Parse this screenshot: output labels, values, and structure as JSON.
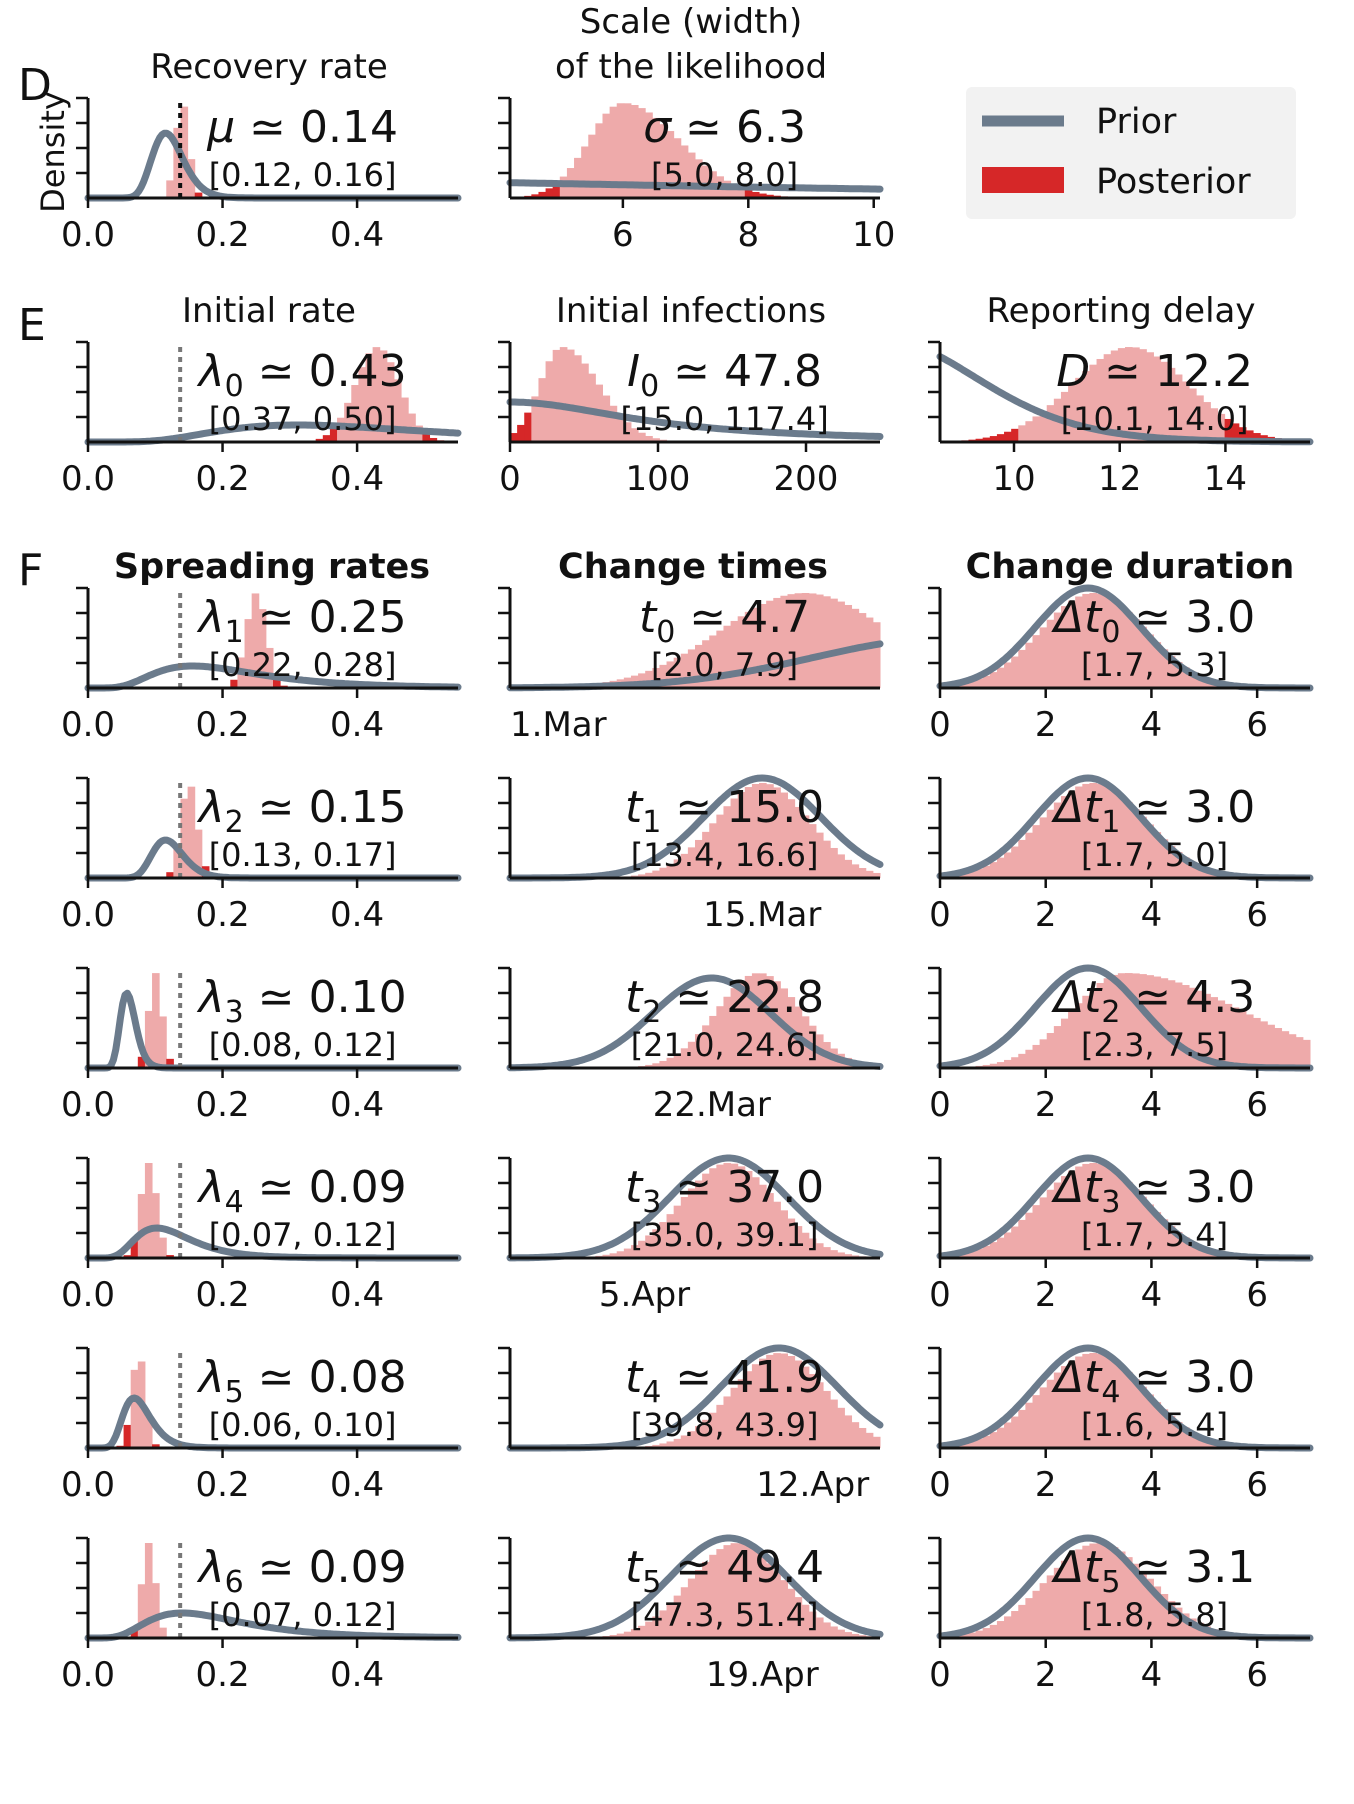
{
  "colors": {
    "prior": "#6b7b8c",
    "prior_light": "#b8c2cc",
    "posterior": "#d62728",
    "posterior_light": "#eeaaaa",
    "legend_bg": "#f2f2f2"
  },
  "legend": {
    "prior": "Prior",
    "posterior": "Posterior"
  },
  "row_labels": [
    "D",
    "E",
    "F"
  ],
  "ylabel": "Density",
  "section_titles": {
    "spreading": "Spreading rates",
    "change_times": "Change times",
    "change_duration": "Change duration"
  },
  "chart_data": [
    {
      "type": "histogram",
      "title_lines": [
        "Recovery rate"
      ],
      "symbol": "μ",
      "sub": "",
      "value": "0.14",
      "interval": "[0.12, 0.16]",
      "xlim": [
        0.0,
        0.55
      ],
      "ticks": [
        {
          "v": 0.0,
          "l": "0.0"
        },
        {
          "v": 0.2,
          "l": "0.2"
        },
        {
          "v": 0.4,
          "l": "0.4"
        }
      ],
      "ref_line": 0.137,
      "prior": {
        "kind": "lognormal",
        "median": 0.12,
        "sigma": 0.2,
        "peak": 0.65
      },
      "posterior": {
        "kind": "normal",
        "mean": 0.14,
        "sd": 0.01
      }
    },
    {
      "type": "histogram",
      "title_lines": [
        "Scale (width)",
        "of the likelihood"
      ],
      "symbol": "σ",
      "sub": "",
      "value": "6.3",
      "interval": "[5.0, 8.0]",
      "xlim": [
        4.2,
        10.1
      ],
      "ticks": [
        {
          "v": 6,
          "l": "6"
        },
        {
          "v": 8,
          "l": "8"
        },
        {
          "v": 10,
          "l": "10"
        }
      ],
      "ref_line": null,
      "prior": {
        "kind": "halfcauchy",
        "scale": 10,
        "peak": 0.18
      },
      "posterior": {
        "kind": "skew",
        "mode": 6.0,
        "sdl": 0.55,
        "sdr": 0.9
      }
    },
    {
      "type": "histogram",
      "title_lines": [
        "Initial rate"
      ],
      "symbol": "λ",
      "sub": "0",
      "value": "0.43",
      "interval": "[0.37, 0.50]",
      "xlim": [
        0.0,
        0.55
      ],
      "ticks": [
        {
          "v": 0.0,
          "l": "0.0"
        },
        {
          "v": 0.2,
          "l": "0.2"
        },
        {
          "v": 0.4,
          "l": "0.4"
        }
      ],
      "ref_line": 0.137,
      "prior": {
        "kind": "lognormal",
        "median": 0.4,
        "sigma": 0.5,
        "peak": 0.17
      },
      "posterior": {
        "kind": "normal",
        "mean": 0.43,
        "sd": 0.033
      }
    },
    {
      "type": "histogram",
      "title_lines": [
        "Initial infections"
      ],
      "symbol": "I",
      "sub": "0",
      "value": "47.8",
      "interval": "[15.0, 117.4]",
      "xlim": [
        0,
        250
      ],
      "ticks": [
        {
          "v": 0,
          "l": "0"
        },
        {
          "v": 100,
          "l": "100"
        },
        {
          "v": 200,
          "l": "200"
        }
      ],
      "ref_line": null,
      "prior": {
        "kind": "halfcauchy",
        "scale": 100,
        "peak": 0.4
      },
      "posterior": {
        "kind": "skew",
        "mode": 35,
        "sdl": 15,
        "sdr": 25
      }
    },
    {
      "type": "histogram",
      "title_lines": [
        "Reporting delay"
      ],
      "symbol": "D",
      "sub": "",
      "value": "12.2",
      "interval": "[10.1, 14.0]",
      "xlim": [
        8.6,
        15.6
      ],
      "ticks": [
        {
          "v": 10,
          "l": "10"
        },
        {
          "v": 12,
          "l": "12"
        },
        {
          "v": 14,
          "l": "14"
        }
      ],
      "ref_line": null,
      "prior": {
        "kind": "lognormal",
        "median": 8,
        "sigma": 0.2,
        "peak": 1.0
      },
      "posterior": {
        "kind": "normal",
        "mean": 12.2,
        "sd": 1.1
      }
    },
    {
      "type": "histogram",
      "symbol": "λ",
      "sub": "1",
      "value": "0.25",
      "interval": "[0.22, 0.28]",
      "xlim": [
        0.0,
        0.55
      ],
      "ticks": [
        {
          "v": 0.0,
          "l": "0.0"
        },
        {
          "v": 0.2,
          "l": "0.2"
        },
        {
          "v": 0.4,
          "l": "0.4"
        }
      ],
      "ref_line": 0.137,
      "prior": {
        "kind": "lognormal",
        "median": 0.2,
        "sigma": 0.5,
        "peak": 0.22
      },
      "posterior": {
        "kind": "normal",
        "mean": 0.25,
        "sd": 0.015
      }
    },
    {
      "type": "histogram",
      "symbol": "t",
      "sub": "0",
      "value": "4.7",
      "interval": "[2.0, 7.9]",
      "xlim": [
        -14,
        8
      ],
      "ticks": [
        {
          "v": -14,
          "l": "1.Mar"
        }
      ],
      "ref_line": null,
      "prior": {
        "kind": "normal",
        "mean": 12,
        "sd": 8,
        "peak": 0.5
      },
      "posterior": {
        "kind": "normal",
        "mean": 3.5,
        "sd": 5
      }
    },
    {
      "type": "histogram",
      "symbol": "Δt",
      "sub": "0",
      "value": "3.0",
      "interval": "[1.7, 5.3]",
      "xlim": [
        0,
        7
      ],
      "ticks": [
        {
          "v": 0,
          "l": "0"
        },
        {
          "v": 2,
          "l": "2"
        },
        {
          "v": 4,
          "l": "4"
        },
        {
          "v": 6,
          "l": "6"
        }
      ],
      "ref_line": null,
      "prior": {
        "kind": "normal",
        "mean": 2.8,
        "sd": 1.0,
        "peak": 1.0
      },
      "posterior": {
        "kind": "normal",
        "mean": 2.9,
        "sd": 1.0
      }
    },
    {
      "type": "histogram",
      "symbol": "λ",
      "sub": "2",
      "value": "0.15",
      "interval": "[0.13, 0.17]",
      "xlim": [
        0.0,
        0.55
      ],
      "ticks": [
        {
          "v": 0.0,
          "l": "0.0"
        },
        {
          "v": 0.2,
          "l": "0.2"
        },
        {
          "v": 0.4,
          "l": "0.4"
        }
      ],
      "ref_line": 0.137,
      "prior": {
        "kind": "lognormal",
        "median": 0.12,
        "sigma": 0.2,
        "peak": 0.38
      },
      "posterior": {
        "kind": "normal",
        "mean": 0.15,
        "sd": 0.012
      }
    },
    {
      "type": "histogram",
      "symbol": "t",
      "sub": "1",
      "value": "15.0",
      "interval": "[13.4, 16.6]",
      "xlim": [
        -14,
        8
      ],
      "ticks": [
        {
          "v": 1,
          "l": "15.Mar"
        }
      ],
      "ref_line": null,
      "prior": {
        "kind": "normal",
        "mean": 1,
        "sd": 3.5,
        "peak": 1.0
      },
      "posterior": {
        "kind": "normal",
        "mean": 1,
        "sd": 2.8
      }
    },
    {
      "type": "histogram",
      "symbol": "Δt",
      "sub": "1",
      "value": "3.0",
      "interval": "[1.7, 5.0]",
      "xlim": [
        0,
        7
      ],
      "ticks": [
        {
          "v": 0,
          "l": "0"
        },
        {
          "v": 2,
          "l": "2"
        },
        {
          "v": 4,
          "l": "4"
        },
        {
          "v": 6,
          "l": "6"
        }
      ],
      "ref_line": null,
      "prior": {
        "kind": "normal",
        "mean": 2.8,
        "sd": 1.0,
        "peak": 1.0
      },
      "posterior": {
        "kind": "normal",
        "mean": 2.9,
        "sd": 1.0
      }
    },
    {
      "type": "histogram",
      "symbol": "λ",
      "sub": "3",
      "value": "0.10",
      "interval": "[0.08, 0.12]",
      "xlim": [
        0.0,
        0.55
      ],
      "ticks": [
        {
          "v": 0.0,
          "l": "0.0"
        },
        {
          "v": 0.2,
          "l": "0.2"
        },
        {
          "v": 0.4,
          "l": "0.4"
        }
      ],
      "ref_line": 0.137,
      "prior": {
        "kind": "lognormal",
        "median": 0.06,
        "sigma": 0.2,
        "peak": 0.75
      },
      "posterior": {
        "kind": "normal",
        "mean": 0.1,
        "sd": 0.01
      }
    },
    {
      "type": "histogram",
      "symbol": "t",
      "sub": "2",
      "value": "22.8",
      "interval": "[21.0, 24.6]",
      "xlim": [
        -14,
        8
      ],
      "ticks": [
        {
          "v": -2,
          "l": "22.Mar"
        }
      ],
      "ref_line": null,
      "prior": {
        "kind": "normal",
        "mean": -2,
        "sd": 3.5,
        "peak": 0.9
      },
      "posterior": {
        "kind": "normal",
        "mean": 0.8,
        "sd": 2.5
      }
    },
    {
      "type": "histogram",
      "symbol": "Δt",
      "sub": "2",
      "value": "4.3",
      "interval": "[2.3, 7.5]",
      "xlim": [
        0,
        7
      ],
      "ticks": [
        {
          "v": 0,
          "l": "0"
        },
        {
          "v": 2,
          "l": "2"
        },
        {
          "v": 4,
          "l": "4"
        },
        {
          "v": 6,
          "l": "6"
        }
      ],
      "ref_line": null,
      "prior": {
        "kind": "normal",
        "mean": 2.8,
        "sd": 1.0,
        "peak": 1.0
      },
      "posterior": {
        "kind": "skew",
        "mode": 3.5,
        "sdl": 1.0,
        "sdr": 2.2
      }
    },
    {
      "type": "histogram",
      "symbol": "λ",
      "sub": "4",
      "value": "0.09",
      "interval": "[0.07, 0.12]",
      "xlim": [
        0.0,
        0.55
      ],
      "ticks": [
        {
          "v": 0.0,
          "l": "0.0"
        },
        {
          "v": 0.2,
          "l": "0.2"
        },
        {
          "v": 0.4,
          "l": "0.4"
        }
      ],
      "ref_line": 0.137,
      "prior": {
        "kind": "lognormal",
        "median": 0.12,
        "sigma": 0.4,
        "peak": 0.3
      },
      "posterior": {
        "kind": "normal",
        "mean": 0.09,
        "sd": 0.012
      }
    },
    {
      "type": "histogram",
      "symbol": "t",
      "sub": "3",
      "value": "37.0",
      "interval": "[35.0, 39.1]",
      "xlim": [
        -14,
        8
      ],
      "ticks": [
        {
          "v": -6,
          "l": "5.Apr"
        }
      ],
      "ref_line": null,
      "prior": {
        "kind": "normal",
        "mean": -1,
        "sd": 3.5,
        "peak": 1.0
      },
      "posterior": {
        "kind": "normal",
        "mean": -1,
        "sd": 2.8
      }
    },
    {
      "type": "histogram",
      "symbol": "Δt",
      "sub": "3",
      "value": "3.0",
      "interval": "[1.7, 5.4]",
      "xlim": [
        0,
        7
      ],
      "ticks": [
        {
          "v": 0,
          "l": "0"
        },
        {
          "v": 2,
          "l": "2"
        },
        {
          "v": 4,
          "l": "4"
        },
        {
          "v": 6,
          "l": "6"
        }
      ],
      "ref_line": null,
      "prior": {
        "kind": "normal",
        "mean": 2.8,
        "sd": 1.0,
        "peak": 1.0
      },
      "posterior": {
        "kind": "normal",
        "mean": 2.9,
        "sd": 1.0
      }
    },
    {
      "type": "histogram",
      "symbol": "λ",
      "sub": "5",
      "value": "0.08",
      "interval": "[0.06, 0.10]",
      "xlim": [
        0.0,
        0.55
      ],
      "ticks": [
        {
          "v": 0.0,
          "l": "0.0"
        },
        {
          "v": 0.2,
          "l": "0.2"
        },
        {
          "v": 0.4,
          "l": "0.4"
        }
      ],
      "ref_line": 0.137,
      "prior": {
        "kind": "lognormal",
        "median": 0.075,
        "sigma": 0.3,
        "peak": 0.5
      },
      "posterior": {
        "kind": "normal",
        "mean": 0.075,
        "sd": 0.01
      }
    },
    {
      "type": "histogram",
      "symbol": "t",
      "sub": "4",
      "value": "41.9",
      "interval": "[39.8, 43.9]",
      "xlim": [
        -14,
        8
      ],
      "ticks": [
        {
          "v": 4,
          "l": "12.Apr"
        }
      ],
      "ref_line": null,
      "prior": {
        "kind": "normal",
        "mean": 2,
        "sd": 3.5,
        "peak": 1.0
      },
      "posterior": {
        "kind": "normal",
        "mean": 2,
        "sd": 2.8
      }
    },
    {
      "type": "histogram",
      "symbol": "Δt",
      "sub": "4",
      "value": "3.0",
      "interval": "[1.6, 5.4]",
      "xlim": [
        0,
        7
      ],
      "ticks": [
        {
          "v": 0,
          "l": "0"
        },
        {
          "v": 2,
          "l": "2"
        },
        {
          "v": 4,
          "l": "4"
        },
        {
          "v": 6,
          "l": "6"
        }
      ],
      "ref_line": null,
      "prior": {
        "kind": "normal",
        "mean": 2.8,
        "sd": 1.0,
        "peak": 1.0
      },
      "posterior": {
        "kind": "normal",
        "mean": 2.9,
        "sd": 1.0
      }
    },
    {
      "type": "histogram",
      "symbol": "λ",
      "sub": "6",
      "value": "0.09",
      "interval": "[0.07, 0.12]",
      "xlim": [
        0.0,
        0.55
      ],
      "ticks": [
        {
          "v": 0.0,
          "l": "0.0"
        },
        {
          "v": 0.2,
          "l": "0.2"
        },
        {
          "v": 0.4,
          "l": "0.4"
        }
      ],
      "ref_line": 0.137,
      "prior": {
        "kind": "lognormal",
        "median": 0.18,
        "sigma": 0.5,
        "peak": 0.25
      },
      "posterior": {
        "kind": "normal",
        "mean": 0.09,
        "sd": 0.01
      }
    },
    {
      "type": "histogram",
      "symbol": "t",
      "sub": "5",
      "value": "49.4",
      "interval": "[47.3, 51.4]",
      "xlim": [
        -14,
        8
      ],
      "ticks": [
        {
          "v": 1,
          "l": "19.Apr"
        }
      ],
      "ref_line": null,
      "prior": {
        "kind": "normal",
        "mean": -1,
        "sd": 3.5,
        "peak": 1.0
      },
      "posterior": {
        "kind": "normal",
        "mean": -0.5,
        "sd": 2.8
      }
    },
    {
      "type": "histogram",
      "symbol": "Δt",
      "sub": "5",
      "value": "3.1",
      "interval": "[1.8, 5.8]",
      "xlim": [
        0,
        7
      ],
      "ticks": [
        {
          "v": 0,
          "l": "0"
        },
        {
          "v": 2,
          "l": "2"
        },
        {
          "v": 4,
          "l": "4"
        },
        {
          "v": 6,
          "l": "6"
        }
      ],
      "ref_line": null,
      "prior": {
        "kind": "normal",
        "mean": 2.8,
        "sd": 1.0,
        "peak": 1.0
      },
      "posterior": {
        "kind": "normal",
        "mean": 3.0,
        "sd": 1.0
      }
    }
  ]
}
